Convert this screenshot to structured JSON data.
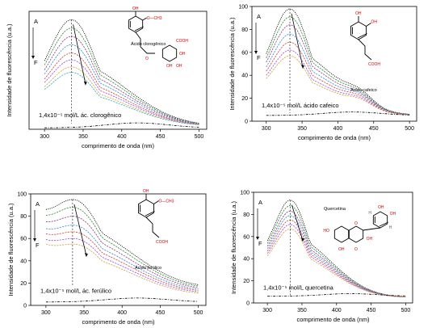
{
  "chart_data": [
    {
      "type": "line",
      "id": "clorogenico",
      "xlabel": "comprimento de onda (nm)",
      "ylabel": "Intensidade de fluorescência (u.a.)",
      "xlim": [
        280,
        510
      ],
      "ylim": [
        0,
        85
      ],
      "xticks": [
        300,
        350,
        400,
        450,
        500
      ],
      "yticks": [],
      "peak_x": 335,
      "peak_values": [
        79,
        73,
        67,
        61,
        55,
        50,
        45,
        41
      ],
      "base_values": [
        2,
        2,
        2,
        2,
        2,
        2,
        2,
        2
      ],
      "start_values": [
        17,
        17,
        16,
        16,
        15,
        15,
        14,
        14
      ],
      "peak_width": 30,
      "blank": {
        "label": "1,4x10⁻⁵ mol/L ác. clorogênico",
        "peak": 7,
        "base": 1
      },
      "arrow_top": "A",
      "arrow_bottom": "F",
      "molecule_label": "Ácido clorogênico",
      "mol": "clorogenico",
      "atoms": {
        "oh1": "OH",
        "och3": "O—CH3",
        "o": "O",
        "cooh": "COOH",
        "oh2": "OH",
        "oh3": "OH",
        "oh4": "OH"
      }
    },
    {
      "type": "line",
      "id": "cafeico",
      "xlabel": "comprimento de onda (nm)",
      "ylabel": "Intensidade de fluorescência (u.a.)",
      "xlim": [
        280,
        510
      ],
      "ylim": [
        0,
        100
      ],
      "xticks": [
        300,
        350,
        400,
        450,
        500
      ],
      "yticks": [
        0,
        20,
        40,
        60,
        80,
        100
      ],
      "peak_x": 333,
      "peak_values": [
        98,
        91,
        84,
        76,
        69,
        62,
        57
      ],
      "base_values": [
        5,
        5,
        5,
        5,
        5,
        5,
        5
      ],
      "start_values": [
        22,
        21,
        20,
        19,
        18,
        17,
        16
      ],
      "peak_width": 26,
      "shoulder": {
        "x": 430,
        "values": [
          20,
          19,
          18,
          18,
          17,
          16,
          15
        ]
      },
      "blank": {
        "label": "1,4x10⁻⁵ mol/L ácido cafeico",
        "peak": 10,
        "base": 5
      },
      "arrow_top": "A",
      "arrow_bottom": "F",
      "molecule_label": "Ácido cafeico",
      "mol": "cafeico",
      "atoms": {
        "oh1": "OH",
        "oh2": "OH",
        "cooh": "COOH"
      }
    },
    {
      "type": "line",
      "id": "ferulico",
      "xlabel": "comprimento de onda (nm)",
      "ylabel": "Intensidade de fluorescência (u.a.)",
      "xlim": [
        280,
        510
      ],
      "ylim": [
        0,
        100
      ],
      "xticks": [
        300,
        350,
        400,
        450,
        500
      ],
      "yticks": [
        0,
        20,
        40,
        60,
        80,
        100
      ],
      "peak_x": 335,
      "peak_values": [
        95,
        88,
        80,
        72,
        66,
        60,
        55
      ],
      "base_values": [
        15,
        14,
        13,
        12,
        11,
        10,
        9
      ],
      "start_values": [
        60,
        58,
        56,
        53,
        51,
        48,
        46
      ],
      "peak_width": 32,
      "blank": {
        "label": "1,4x10⁻⁵ mol/L ác. ferúlico",
        "peak": 9,
        "base": 3
      },
      "arrow_top": "A",
      "arrow_bottom": "F",
      "molecule_label": "Ácido ferúlico",
      "mol": "ferulico",
      "atoms": {
        "oh1": "OH",
        "och3": "O—CH3",
        "cooh": "COOH"
      }
    },
    {
      "type": "line",
      "id": "quercetina",
      "xlabel": "comprimento de onda (nm)",
      "ylabel": "Intensidade de fluorescência (u.a.)",
      "xlim": [
        280,
        510
      ],
      "ylim": [
        0,
        100
      ],
      "xticks": [
        300,
        350,
        400,
        450,
        500
      ],
      "yticks": [
        0,
        20,
        40,
        60,
        80,
        100
      ],
      "peak_x": 333,
      "peak_values": [
        93,
        88,
        83,
        79,
        75,
        71,
        67
      ],
      "base_values": [
        5,
        5,
        5,
        5,
        5,
        5,
        5
      ],
      "start_values": [
        28,
        27,
        26,
        25,
        24,
        23,
        22
      ],
      "peak_width": 24,
      "blank": {
        "label": "1,4x10⁻⁵ mol/L quercetina",
        "peak": 10,
        "base": 6
      },
      "arrow_top": "A",
      "arrow_bottom": "F",
      "molecule_label": "Quercetina",
      "mol": "quercetina",
      "atoms": {
        "h1": "H",
        "oh1": "OH",
        "oh2": "OH",
        "ho": "HO",
        "o": "O",
        "oh3": "OH",
        "oh4": "OH",
        "o2": "O",
        "h2": "H"
      }
    }
  ],
  "colors": [
    "#000000",
    "#2e8b2e",
    "#8b3a8b",
    "#3a8bd0",
    "#d04040",
    "#a04fd0",
    "#d0a040",
    "#30b0b0"
  ]
}
